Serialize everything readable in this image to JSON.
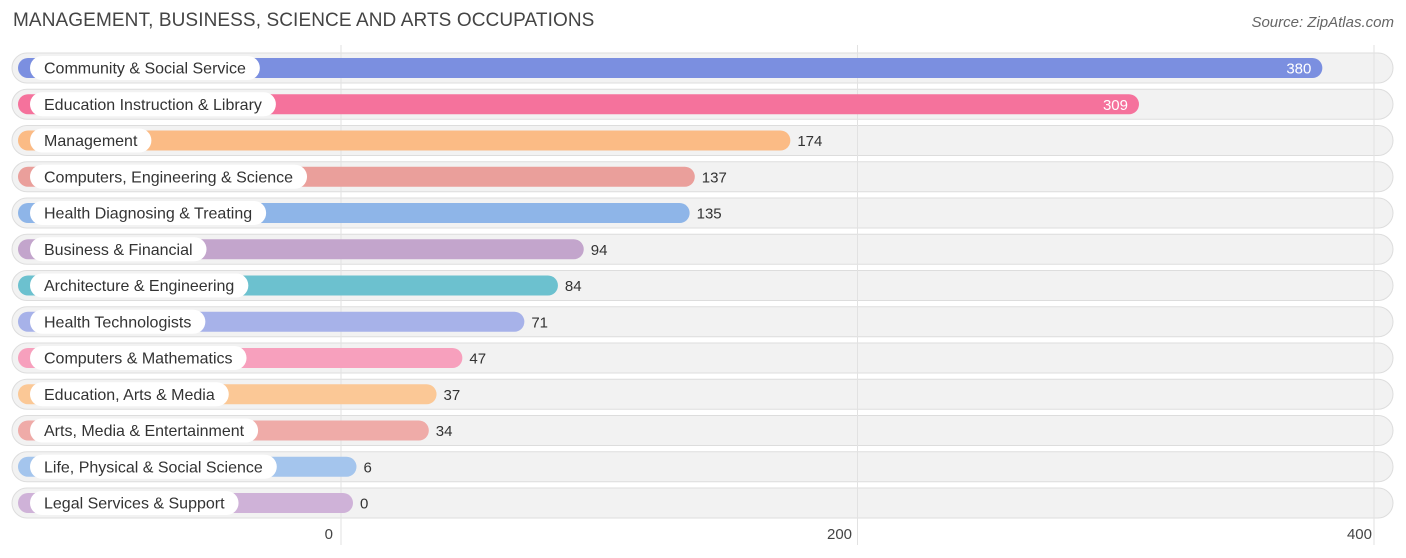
{
  "header": {
    "title": "MANAGEMENT, BUSINESS, SCIENCE AND ARTS OCCUPATIONS",
    "source": "Source: ZipAtlas.com"
  },
  "chart_data": {
    "type": "bar",
    "orientation": "horizontal",
    "title": "MANAGEMENT, BUSINESS, SCIENCE AND ARTS OCCUPATIONS",
    "xlabel": "",
    "ylabel": "",
    "xlim": [
      0,
      400
    ],
    "xticks": [
      0,
      200,
      400
    ],
    "grid": true,
    "categories": [
      "Community & Social Service",
      "Education Instruction & Library",
      "Management",
      "Computers, Engineering & Science",
      "Health Diagnosing & Treating",
      "Business & Financial",
      "Architecture & Engineering",
      "Health Technologists",
      "Computers & Mathematics",
      "Education, Arts & Media",
      "Arts, Media & Entertainment",
      "Life, Physical & Social Science",
      "Legal Services & Support"
    ],
    "values": [
      380,
      309,
      174,
      137,
      135,
      94,
      84,
      71,
      47,
      37,
      34,
      6,
      0
    ],
    "colors": [
      "#7b8fe0",
      "#f5729c",
      "#fbbb85",
      "#ea9f9b",
      "#8eb5e8",
      "#c3a5cc",
      "#6cc1cf",
      "#a7b2e9",
      "#f7a0bd",
      "#fbc896",
      "#efaba8",
      "#a4c5ed",
      "#cfb2d8"
    ]
  }
}
